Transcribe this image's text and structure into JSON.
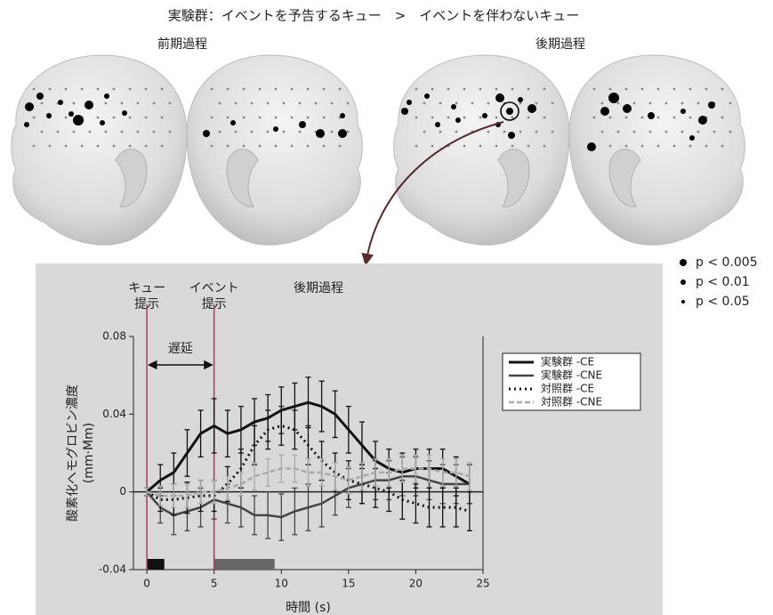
{
  "title": "実験群：イベントを予告するキュー　>　イベントを伴わないキュー",
  "phases": [
    "前期過程",
    "後期過程"
  ],
  "significance_legend": [
    "p < 0.005",
    "p < 0.01",
    "p < 0.05"
  ],
  "chart_data": {
    "type": "line",
    "xlabel": "時間 (s)",
    "ylabel": [
      "酸素化ヘモグロビン濃度",
      "(mm·Mm)"
    ],
    "x": [
      0,
      1,
      2,
      3,
      4,
      5,
      6,
      7,
      8,
      9,
      10,
      11,
      12,
      13,
      14,
      15,
      16,
      17,
      18,
      19,
      20,
      21,
      22,
      23,
      24
    ],
    "series": [
      {
        "name": "実験群 -CE",
        "color": "#111111",
        "dash": "none",
        "width": 3,
        "values": [
          0,
          0.006,
          0.01,
          0.02,
          0.03,
          0.034,
          0.03,
          0.032,
          0.036,
          0.038,
          0.042,
          0.044,
          0.046,
          0.044,
          0.04,
          0.032,
          0.024,
          0.016,
          0.012,
          0.01,
          0.012,
          0.012,
          0.012,
          0.008,
          0.004
        ],
        "errors": [
          0.002,
          0.008,
          0.01,
          0.012,
          0.012,
          0.014,
          0.012,
          0.012,
          0.012,
          0.012,
          0.012,
          0.012,
          0.013,
          0.013,
          0.012,
          0.012,
          0.012,
          0.01,
          0.01,
          0.01,
          0.01,
          0.01,
          0.01,
          0.01,
          0.01
        ]
      },
      {
        "name": "実験群 -CNE",
        "color": "#444444",
        "dash": "none",
        "width": 2.5,
        "values": [
          0,
          -0.008,
          -0.012,
          -0.01,
          -0.008,
          -0.004,
          -0.006,
          -0.008,
          -0.012,
          -0.012,
          -0.013,
          -0.01,
          -0.008,
          -0.006,
          -0.002,
          0.002,
          0.004,
          0.006,
          0.006,
          0.008,
          0.008,
          0.006,
          0.004,
          0.004,
          0.004
        ],
        "errors": [
          0.002,
          0.008,
          0.01,
          0.01,
          0.01,
          0.01,
          0.01,
          0.01,
          0.01,
          0.012,
          0.012,
          0.012,
          0.012,
          0.012,
          0.01,
          0.01,
          0.01,
          0.01,
          0.01,
          0.01,
          0.01,
          0.01,
          0.01,
          0.01,
          0.01
        ]
      },
      {
        "name": "対照群 -CE",
        "color": "#111111",
        "dash": "2,4",
        "width": 3,
        "values": [
          0,
          -0.004,
          -0.004,
          -0.003,
          -0.002,
          -0.002,
          0.004,
          0.012,
          0.024,
          0.032,
          0.034,
          0.032,
          0.024,
          0.016,
          0.01,
          0.006,
          0.004,
          0.002,
          0,
          -0.004,
          -0.006,
          -0.008,
          -0.008,
          -0.008,
          -0.01
        ],
        "errors": [
          0.002,
          0.006,
          0.008,
          0.008,
          0.008,
          0.008,
          0.009,
          0.01,
          0.01,
          0.01,
          0.01,
          0.01,
          0.01,
          0.01,
          0.01,
          0.01,
          0.01,
          0.01,
          0.01,
          0.01,
          0.01,
          0.01,
          0.01,
          0.01,
          0.01
        ]
      },
      {
        "name": "対照群 -CNE",
        "color": "#aaaaaa",
        "dash": "6,3",
        "width": 2.5,
        "values": [
          0,
          -0.002,
          -0.002,
          -0.002,
          0,
          0,
          0.002,
          0.004,
          0.008,
          0.01,
          0.012,
          0.012,
          0.01,
          0.01,
          0.008,
          0.006,
          0.008,
          0.01,
          0.01,
          0.012,
          0.012,
          0.012,
          0.01,
          0.01,
          0.008
        ],
        "errors": [
          0.002,
          0.005,
          0.006,
          0.006,
          0.006,
          0.006,
          0.006,
          0.006,
          0.007,
          0.007,
          0.007,
          0.007,
          0.007,
          0.007,
          0.007,
          0.007,
          0.007,
          0.007,
          0.007,
          0.007,
          0.007,
          0.007,
          0.007,
          0.007,
          0.007
        ]
      }
    ],
    "xlim": [
      -1,
      25
    ],
    "xticks": [
      0,
      5,
      10,
      15,
      20,
      25
    ],
    "ylim": [
      -0.04,
      0.08
    ],
    "yticks": [
      0.08,
      0.04,
      0,
      -0.04
    ],
    "hline": 0,
    "markers": [
      {
        "x": 0,
        "label": [
          "キュー",
          "提示"
        ],
        "color": "#a0405a"
      },
      {
        "x": 5,
        "label": [
          "イベント",
          "提示"
        ],
        "color": "#a0405a"
      }
    ],
    "annotation": "後期過程",
    "delay_label": "遅延",
    "periods": [
      {
        "start": 0,
        "end": 1.3,
        "color": "#111111"
      },
      {
        "start": 5,
        "end": 9.5,
        "color": "#666666"
      }
    ]
  }
}
